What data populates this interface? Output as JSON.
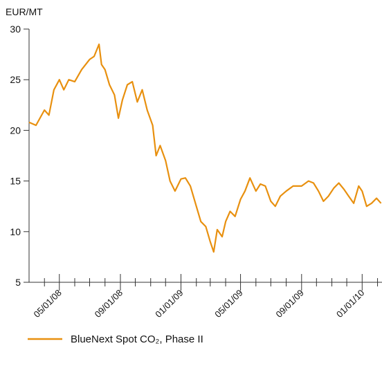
{
  "chart_data": {
    "type": "line",
    "ylabel": "EUR/MT",
    "x": [
      "2008-03-01",
      "2008-03-15",
      "2008-04-01",
      "2008-04-10",
      "2008-04-20",
      "2008-05-01",
      "2008-05-10",
      "2008-05-20",
      "2008-06-01",
      "2008-06-15",
      "2008-07-01",
      "2008-07-10",
      "2008-07-20",
      "2008-07-25",
      "2008-08-01",
      "2008-08-10",
      "2008-08-20",
      "2008-08-28",
      "2008-09-05",
      "2008-09-15",
      "2008-09-25",
      "2008-10-05",
      "2008-10-15",
      "2008-10-25",
      "2008-11-05",
      "2008-11-12",
      "2008-11-20",
      "2008-12-01",
      "2008-12-10",
      "2008-12-20",
      "2009-01-01",
      "2009-01-10",
      "2009-01-20",
      "2009-02-01",
      "2009-02-10",
      "2009-02-20",
      "2009-03-01",
      "2009-03-08",
      "2009-03-15",
      "2009-03-25",
      "2009-04-01",
      "2009-04-10",
      "2009-04-20",
      "2009-05-01",
      "2009-05-10",
      "2009-05-20",
      "2009-06-01",
      "2009-06-10",
      "2009-06-20",
      "2009-07-01",
      "2009-07-10",
      "2009-07-20",
      "2009-08-01",
      "2009-08-15",
      "2009-09-01",
      "2009-09-15",
      "2009-09-25",
      "2009-10-05",
      "2009-10-15",
      "2009-10-25",
      "2009-11-05",
      "2009-11-15",
      "2009-11-25",
      "2009-12-05",
      "2009-12-15",
      "2009-12-25",
      "2010-01-01",
      "2010-01-10",
      "2010-01-20",
      "2010-01-30",
      "2010-02-08"
    ],
    "series": [
      {
        "name": "BlueNext Spot CO₂, Phase II",
        "color": "#e8900f",
        "values": [
          20.8,
          20.5,
          22,
          21.5,
          24,
          25,
          24,
          25,
          24.8,
          26,
          27,
          27.3,
          28.5,
          26.5,
          26,
          24.5,
          23.5,
          21.2,
          23,
          24.5,
          24.8,
          22.8,
          24,
          22,
          20.5,
          17.5,
          18.5,
          17,
          15,
          14,
          15.2,
          15.3,
          14.5,
          12.5,
          11,
          10.5,
          9,
          8,
          10.2,
          9.5,
          11,
          12,
          11.5,
          13.2,
          14,
          15.3,
          14,
          14.7,
          14.5,
          13,
          12.5,
          13.5,
          14,
          14.5,
          14.5,
          15,
          14.8,
          14,
          13,
          13.5,
          14.3,
          14.8,
          14.2,
          13.5,
          12.8,
          14.5,
          14,
          12.5,
          12.8,
          13.3,
          12.8
        ]
      }
    ],
    "xlim": [
      "2008-03-01",
      "2010-02-10"
    ],
    "xticks": [
      {
        "value": "2008-05-01",
        "label": "05/01/08"
      },
      {
        "value": "2008-09-01",
        "label": "09/01/08"
      },
      {
        "value": "2009-01-01",
        "label": "01/01/09"
      },
      {
        "value": "2009-05-01",
        "label": "05/01/09"
      },
      {
        "value": "2009-09-01",
        "label": "09/01/09"
      },
      {
        "value": "2010-01-01",
        "label": "01/01/10"
      }
    ],
    "xminor": [
      "2008-04-01",
      "2008-06-01",
      "2008-07-01",
      "2008-08-01",
      "2008-10-01",
      "2008-11-01",
      "2008-12-01",
      "2009-02-01",
      "2009-03-01",
      "2009-04-01",
      "2009-06-01",
      "2009-07-01",
      "2009-08-01",
      "2009-10-01",
      "2009-11-01",
      "2009-12-01",
      "2010-02-01"
    ],
    "ylim": [
      5,
      30
    ],
    "yticks": [
      5,
      10,
      15,
      20,
      25,
      30
    ]
  }
}
